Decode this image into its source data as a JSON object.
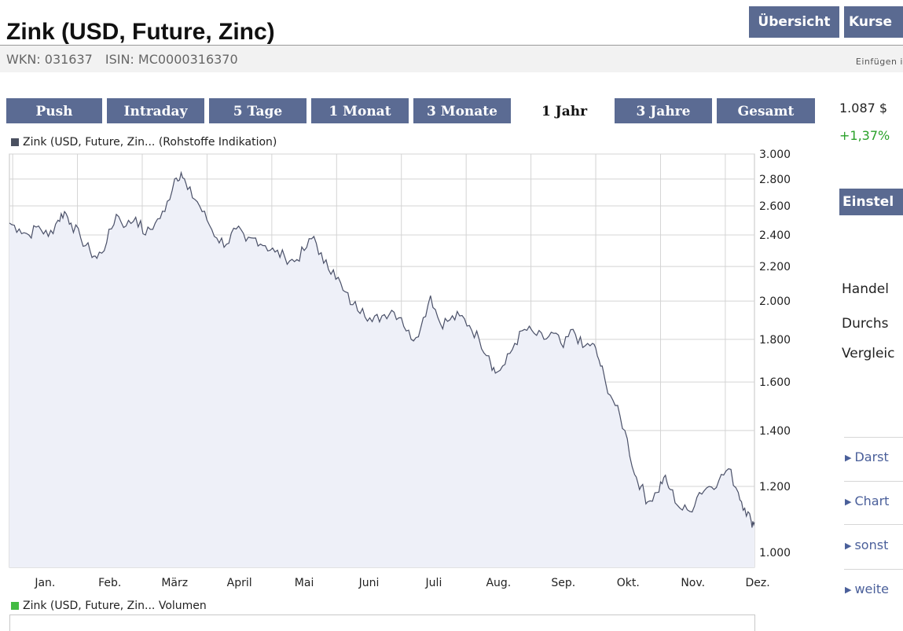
{
  "header": {
    "title": "Zink (USD, Future, Zinc)",
    "wkn": "WKN: 031637",
    "isin": "ISIN: MC0000316370",
    "insert_text": "Einfügen i",
    "nav": [
      "Übersicht",
      "Kurse"
    ]
  },
  "tabs": [
    {
      "label": "Push",
      "active": false
    },
    {
      "label": "Intraday",
      "active": false
    },
    {
      "label": "5 Tage",
      "active": false
    },
    {
      "label": "1 Monat",
      "active": false
    },
    {
      "label": "3 Monate",
      "active": false
    },
    {
      "label": "1 Jahr",
      "active": true
    },
    {
      "label": "3 Jahre",
      "active": false
    },
    {
      "label": "Gesamt",
      "active": false
    }
  ],
  "legend": {
    "price": "Zink (USD, Future, Zin... (Rohstoffe Indikation)",
    "volume": "Zink (USD, Future, Zin... Volumen",
    "price_color": "#4a5060",
    "volume_color": "#44bb44"
  },
  "sidebar": {
    "price": "1.087 $",
    "change": "+1,37%",
    "settings_title": "Einstel",
    "labels": [
      "Handel",
      "Durchs",
      "Vergleic"
    ],
    "links": [
      "Darst",
      "Chart",
      "sonst",
      "weite"
    ]
  },
  "colors": {
    "nav_bg": "#5a6a91",
    "line": "#4a5068",
    "fill": "#eef0f8",
    "grid": "#d4d4d4",
    "change_positive": "#2aa12a"
  },
  "chart_data": {
    "type": "area",
    "title": "",
    "xlabel": "",
    "ylabel": "",
    "y_scale": "log",
    "ylim": [
      960,
      3000
    ],
    "yticks": [
      1000,
      1200,
      1400,
      1600,
      1800,
      2000,
      2200,
      2400,
      2600,
      2800,
      3000
    ],
    "ytick_labels": [
      "1.000",
      "1.200",
      "1.400",
      "1.600",
      "1.800",
      "2.000",
      "2.200",
      "2.400",
      "2.600",
      "2.800",
      "3.000"
    ],
    "x_categories": [
      "Jan.",
      "Feb.",
      "März",
      "April",
      "Mai",
      "Juni",
      "Juli",
      "Aug.",
      "Sep.",
      "Okt.",
      "Nov.",
      "Dez."
    ],
    "x_range_months": [
      -0.05,
      11.45
    ],
    "grid": true,
    "legend_position": "top-left",
    "series": [
      {
        "name": "Zink (USD, Future, Zin... (Rohstoffe Indikation)",
        "points": [
          [
            -0.05,
            2480
          ],
          [
            0.1,
            2440
          ],
          [
            0.25,
            2400
          ],
          [
            0.4,
            2460
          ],
          [
            0.55,
            2390
          ],
          [
            0.7,
            2500
          ],
          [
            0.8,
            2560
          ],
          [
            0.9,
            2480
          ],
          [
            1.05,
            2380
          ],
          [
            1.2,
            2290
          ],
          [
            1.3,
            2250
          ],
          [
            1.45,
            2350
          ],
          [
            1.6,
            2540
          ],
          [
            1.75,
            2460
          ],
          [
            1.9,
            2520
          ],
          [
            2.05,
            2400
          ],
          [
            2.2,
            2480
          ],
          [
            2.35,
            2560
          ],
          [
            2.5,
            2800
          ],
          [
            2.6,
            2850
          ],
          [
            2.7,
            2720
          ],
          [
            2.85,
            2630
          ],
          [
            3.0,
            2500
          ],
          [
            3.15,
            2380
          ],
          [
            3.3,
            2340
          ],
          [
            3.45,
            2440
          ],
          [
            3.6,
            2360
          ],
          [
            3.75,
            2380
          ],
          [
            3.9,
            2330
          ],
          [
            4.05,
            2290
          ],
          [
            4.2,
            2260
          ],
          [
            4.35,
            2230
          ],
          [
            4.5,
            2300
          ],
          [
            4.65,
            2390
          ],
          [
            4.8,
            2220
          ],
          [
            4.95,
            2180
          ],
          [
            5.1,
            2060
          ],
          [
            5.25,
            1980
          ],
          [
            5.4,
            1960
          ],
          [
            5.55,
            1890
          ],
          [
            5.7,
            1920
          ],
          [
            5.85,
            1950
          ],
          [
            6.0,
            1910
          ],
          [
            6.15,
            1800
          ],
          [
            6.3,
            1860
          ],
          [
            6.45,
            2030
          ],
          [
            6.6,
            1880
          ],
          [
            6.75,
            1900
          ],
          [
            6.9,
            1920
          ],
          [
            7.05,
            1870
          ],
          [
            7.2,
            1800
          ],
          [
            7.35,
            1720
          ],
          [
            7.45,
            1640
          ],
          [
            7.6,
            1680
          ],
          [
            7.75,
            1780
          ],
          [
            7.9,
            1850
          ],
          [
            8.05,
            1830
          ],
          [
            8.2,
            1800
          ],
          [
            8.35,
            1830
          ],
          [
            8.5,
            1760
          ],
          [
            8.65,
            1850
          ],
          [
            8.8,
            1760
          ],
          [
            8.95,
            1780
          ],
          [
            9.05,
            1700
          ],
          [
            9.15,
            1600
          ],
          [
            9.3,
            1500
          ],
          [
            9.45,
            1400
          ],
          [
            9.6,
            1240
          ],
          [
            9.7,
            1200
          ],
          [
            9.8,
            1150
          ],
          [
            9.95,
            1180
          ],
          [
            10.05,
            1230
          ],
          [
            10.15,
            1190
          ],
          [
            10.3,
            1130
          ],
          [
            10.45,
            1120
          ],
          [
            10.6,
            1180
          ],
          [
            10.75,
            1200
          ],
          [
            10.9,
            1220
          ],
          [
            11.05,
            1260
          ],
          [
            11.2,
            1180
          ],
          [
            11.3,
            1130
          ],
          [
            11.4,
            1090
          ],
          [
            11.45,
            1087
          ]
        ]
      }
    ]
  }
}
